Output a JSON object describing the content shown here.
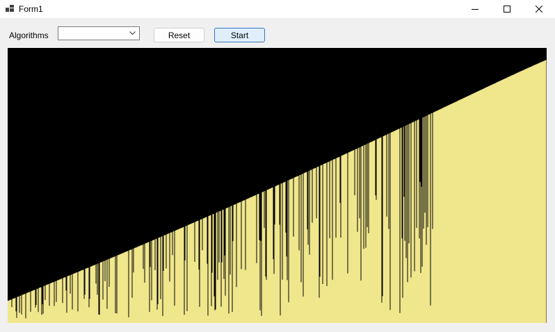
{
  "window": {
    "title": "Form1",
    "icon": "form-app-icon",
    "controls": [
      "minimize-icon",
      "maximize-icon",
      "close-icon"
    ]
  },
  "toolbar": {
    "algorithms_label": "Algorithms",
    "algorithms_value": "",
    "reset_label": "Reset",
    "start_label": "Start"
  },
  "visualization": {
    "element_count": 775,
    "max_value": 396,
    "sorted_count": 160,
    "bar_color": "#f0e68c",
    "background_color": "#000000"
  },
  "colors": {
    "accent": "#2f77c7",
    "start_button_bg": "#e0eefb"
  }
}
